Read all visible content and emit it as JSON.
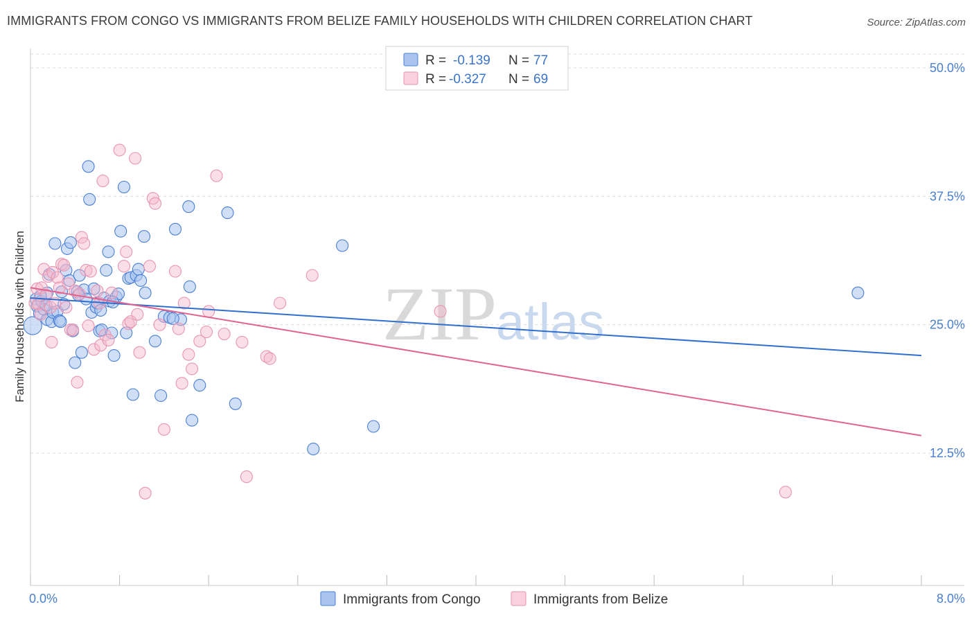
{
  "header": {
    "title": "IMMIGRANTS FROM CONGO VS IMMIGRANTS FROM BELIZE FAMILY HOUSEHOLDS WITH CHILDREN CORRELATION CHART",
    "source": "Source: ZipAtlas.com"
  },
  "watermark": {
    "zip": "ZIP",
    "atlas": "atlas"
  },
  "colors": {
    "congo": "#4a7fd4",
    "congo_fill": "#a9c5ef",
    "belize": "#e26b93",
    "belize_fill": "#f4b8cb",
    "tick": "#4a7fcf",
    "grid": "#dcdcdc"
  },
  "legend": {
    "congo": {
      "r_label": "R =",
      "r_value": "-0.139",
      "n_label": "N =",
      "n_value": "77"
    },
    "belize": {
      "r_label": "R =",
      "r_value": "-0.327",
      "n_label": "N =",
      "n_value": "69"
    }
  },
  "chart_data": {
    "type": "scatter",
    "title": "IMMIGRANTS FROM CONGO VS IMMIGRANTS FROM BELIZE FAMILY HOUSEHOLDS WITH CHILDREN CORRELATION CHART",
    "xlabel": "",
    "ylabel": "Family Households with Children",
    "xlim": [
      0,
      8
    ],
    "ylim": [
      0,
      52
    ],
    "x_tick_labels": {
      "left": "0.0%",
      "right": "8.0%"
    },
    "y_ticks": [
      {
        "value": 12.5,
        "label": "12.5%"
      },
      {
        "value": 25.0,
        "label": "25.0%"
      },
      {
        "value": 37.5,
        "label": "37.5%"
      },
      {
        "value": 50.0,
        "label": "50.0%"
      }
    ],
    "series": [
      {
        "name": "Immigrants from Congo",
        "r": -0.139,
        "n": 77,
        "trend": {
          "x": [
            0,
            8
          ],
          "y": [
            27.6,
            22.0
          ]
        },
        "points": [
          [
            0.02,
            24.9
          ],
          [
            0.05,
            27.5
          ],
          [
            0.06,
            26.8
          ],
          [
            0.08,
            26.1
          ],
          [
            0.1,
            27.3
          ],
          [
            0.12,
            26.5
          ],
          [
            0.15,
            25.5
          ],
          [
            0.15,
            28.1
          ],
          [
            0.17,
            29.9
          ],
          [
            0.19,
            25.3
          ],
          [
            0.2,
            26.2
          ],
          [
            0.22,
            32.9
          ],
          [
            0.24,
            26.3
          ],
          [
            0.26,
            25.4
          ],
          [
            0.28,
            28.2
          ],
          [
            0.3,
            27.0
          ],
          [
            0.32,
            30.3
          ],
          [
            0.33,
            32.4
          ],
          [
            0.35,
            29.3
          ],
          [
            0.36,
            33.0
          ],
          [
            0.38,
            24.4
          ],
          [
            0.4,
            21.3
          ],
          [
            0.42,
            28.2
          ],
          [
            0.44,
            29.8
          ],
          [
            0.46,
            22.3
          ],
          [
            0.48,
            28.4
          ],
          [
            0.5,
            27.5
          ],
          [
            0.52,
            40.4
          ],
          [
            0.53,
            37.2
          ],
          [
            0.55,
            26.2
          ],
          [
            0.57,
            28.5
          ],
          [
            0.59,
            26.7
          ],
          [
            0.6,
            27.1
          ],
          [
            0.62,
            24.4
          ],
          [
            0.64,
            24.5
          ],
          [
            0.66,
            27.6
          ],
          [
            0.68,
            30.3
          ],
          [
            0.7,
            32.1
          ],
          [
            0.71,
            27.3
          ],
          [
            0.73,
            24.2
          ],
          [
            0.75,
            22.0
          ],
          [
            0.77,
            27.7
          ],
          [
            0.79,
            28.0
          ],
          [
            0.81,
            34.1
          ],
          [
            0.84,
            38.4
          ],
          [
            0.86,
            24.2
          ],
          [
            0.88,
            29.5
          ],
          [
            0.9,
            29.6
          ],
          [
            0.92,
            18.2
          ],
          [
            0.95,
            29.8
          ],
          [
            0.97,
            30.4
          ],
          [
            0.99,
            29.3
          ],
          [
            1.02,
            33.6
          ],
          [
            1.03,
            28.1
          ],
          [
            1.12,
            23.4
          ],
          [
            1.17,
            18.1
          ],
          [
            1.2,
            25.8
          ],
          [
            1.25,
            25.7
          ],
          [
            1.3,
            34.3
          ],
          [
            1.35,
            25.5
          ],
          [
            1.42,
            36.5
          ],
          [
            1.43,
            28.7
          ],
          [
            1.45,
            15.7
          ],
          [
            1.52,
            19.1
          ],
          [
            1.77,
            35.9
          ],
          [
            1.84,
            17.3
          ],
          [
            2.54,
            12.9
          ],
          [
            2.8,
            32.7
          ],
          [
            3.08,
            15.1
          ],
          [
            7.43,
            28.1
          ],
          [
            0.09,
            27.8
          ],
          [
            0.14,
            26.9
          ],
          [
            0.27,
            25.3
          ],
          [
            0.43,
            27.9
          ],
          [
            0.63,
            26.4
          ],
          [
            0.74,
            27.2
          ],
          [
            1.28,
            25.6
          ]
        ]
      },
      {
        "name": "Immigrants from Belize",
        "r": -0.327,
        "n": 69,
        "trend": {
          "x": [
            0,
            8
          ],
          "y": [
            28.6,
            14.2
          ]
        },
        "points": [
          [
            0.04,
            27.1
          ],
          [
            0.06,
            28.5
          ],
          [
            0.07,
            27.0
          ],
          [
            0.09,
            26.0
          ],
          [
            0.1,
            28.6
          ],
          [
            0.12,
            30.4
          ],
          [
            0.14,
            27.9
          ],
          [
            0.16,
            29.7
          ],
          [
            0.18,
            26.7
          ],
          [
            0.19,
            23.3
          ],
          [
            0.2,
            30.1
          ],
          [
            0.22,
            27.1
          ],
          [
            0.24,
            29.6
          ],
          [
            0.26,
            28.6
          ],
          [
            0.28,
            30.9
          ],
          [
            0.3,
            30.8
          ],
          [
            0.32,
            26.7
          ],
          [
            0.34,
            29.0
          ],
          [
            0.36,
            24.5
          ],
          [
            0.38,
            24.5
          ],
          [
            0.4,
            28.3
          ],
          [
            0.42,
            19.4
          ],
          [
            0.44,
            28.0
          ],
          [
            0.46,
            33.5
          ],
          [
            0.48,
            32.9
          ],
          [
            0.5,
            30.3
          ],
          [
            0.52,
            24.9
          ],
          [
            0.54,
            30.2
          ],
          [
            0.57,
            22.6
          ],
          [
            0.6,
            28.3
          ],
          [
            0.62,
            27.1
          ],
          [
            0.63,
            23.0
          ],
          [
            0.65,
            39.0
          ],
          [
            0.67,
            24.0
          ],
          [
            0.7,
            23.5
          ],
          [
            0.73,
            28.1
          ],
          [
            0.8,
            42.0
          ],
          [
            0.84,
            30.7
          ],
          [
            0.86,
            32.1
          ],
          [
            0.88,
            25.1
          ],
          [
            0.9,
            25.3
          ],
          [
            0.94,
            41.2
          ],
          [
            0.96,
            26.0
          ],
          [
            0.98,
            22.3
          ],
          [
            1.03,
            8.6
          ],
          [
            1.07,
            30.7
          ],
          [
            1.1,
            37.3
          ],
          [
            1.12,
            36.8
          ],
          [
            1.16,
            25.0
          ],
          [
            1.2,
            14.8
          ],
          [
            1.3,
            30.2
          ],
          [
            1.33,
            24.6
          ],
          [
            1.36,
            19.3
          ],
          [
            1.38,
            27.1
          ],
          [
            1.42,
            22.1
          ],
          [
            1.45,
            20.7
          ],
          [
            1.52,
            23.4
          ],
          [
            1.58,
            24.3
          ],
          [
            1.6,
            26.3
          ],
          [
            1.67,
            39.5
          ],
          [
            1.74,
            24.1
          ],
          [
            1.9,
            23.3
          ],
          [
            1.94,
            10.2
          ],
          [
            2.12,
            21.9
          ],
          [
            2.15,
            21.7
          ],
          [
            2.24,
            27.1
          ],
          [
            2.53,
            29.8
          ],
          [
            3.68,
            26.3
          ],
          [
            6.78,
            8.7
          ]
        ]
      }
    ]
  },
  "bottom_legend": {
    "congo_label": "Immigrants from Congo",
    "belize_label": "Immigrants from Belize"
  }
}
